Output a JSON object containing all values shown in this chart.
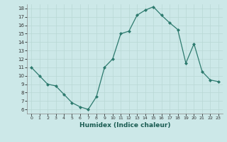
{
  "x": [
    0,
    1,
    2,
    3,
    4,
    5,
    6,
    7,
    8,
    9,
    10,
    11,
    12,
    13,
    14,
    15,
    16,
    17,
    18,
    19,
    20,
    21,
    22,
    23
  ],
  "y": [
    11,
    10,
    9,
    8.8,
    7.8,
    6.8,
    6.3,
    6.0,
    7.5,
    11.0,
    12.0,
    15.0,
    15.3,
    17.2,
    17.8,
    18.2,
    17.2,
    16.3,
    15.5,
    11.5,
    13.8,
    10.5,
    9.5,
    9.3
  ],
  "xlabel": "Humidex (Indice chaleur)",
  "ylim": [
    5.5,
    18.5
  ],
  "xlim": [
    -0.5,
    23.5
  ],
  "yticks": [
    6,
    7,
    8,
    9,
    10,
    11,
    12,
    13,
    14,
    15,
    16,
    17,
    18
  ],
  "xticks": [
    0,
    1,
    2,
    3,
    4,
    5,
    6,
    7,
    8,
    9,
    10,
    11,
    12,
    13,
    14,
    15,
    16,
    17,
    18,
    19,
    20,
    21,
    22,
    23
  ],
  "xtick_labels": [
    "0",
    "1",
    "2",
    "3",
    "4",
    "5",
    "6",
    "7",
    "8",
    "9",
    "10",
    "11",
    "12",
    "13",
    "14",
    "15",
    "16",
    "17",
    "18",
    "19",
    "20",
    "21",
    "22",
    "23"
  ],
  "line_color": "#2d7a6e",
  "marker": "D",
  "marker_size": 2,
  "bg_color": "#cce8e8",
  "grid_color": "#b8d8d4",
  "xlabel_color": "#1a5c52"
}
